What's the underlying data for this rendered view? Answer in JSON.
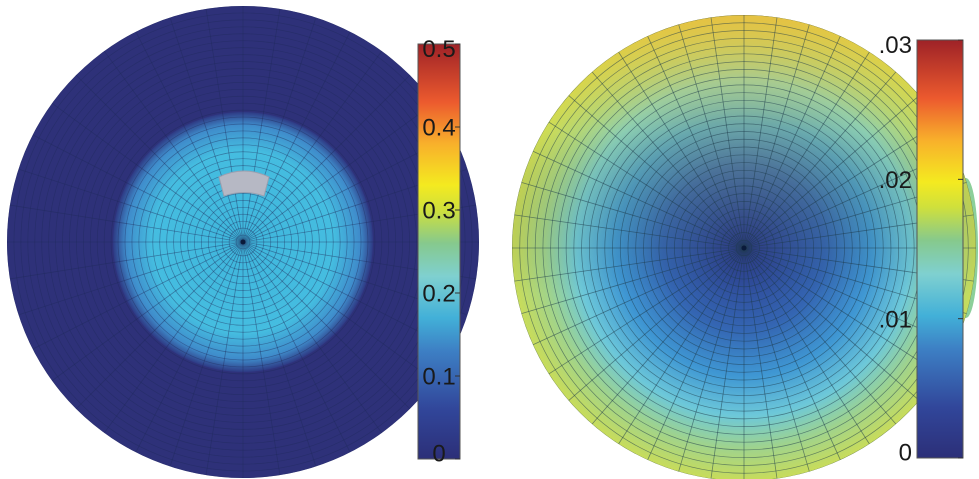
{
  "chart_data": [
    {
      "type": "heatmap",
      "plot": "polar",
      "colormap": "jet",
      "colorbar": {
        "ticks": [
          {
            "value": 0.5,
            "label": "0.5"
          },
          {
            "value": 0.4,
            "label": "0.4"
          },
          {
            "value": 0.3,
            "label": "0.3"
          },
          {
            "value": 0.2,
            "label": "0.2"
          },
          {
            "value": 0.1,
            "label": "0.1"
          },
          {
            "value": 0,
            "label": "0"
          }
        ],
        "range": [
          0,
          0.5
        ]
      },
      "field": {
        "center_value": 0.2,
        "core_fraction": 0.52,
        "outer_value": 0.0,
        "highlight": "grey patch above center"
      }
    },
    {
      "type": "heatmap",
      "plot": "polar",
      "colormap": "jet",
      "colorbar": {
        "ticks": [
          {
            "value": 0.03,
            "label": ".03"
          },
          {
            "value": 0.02,
            "label": ".02"
          },
          {
            "value": 0.01,
            "label": ".01"
          },
          {
            "value": 0,
            "label": "0"
          }
        ],
        "range": [
          0,
          0.03
        ]
      },
      "field": {
        "center_value": 0.0,
        "edge_value_top": 0.025,
        "edge_value_bottom": 0.015
      }
    }
  ]
}
